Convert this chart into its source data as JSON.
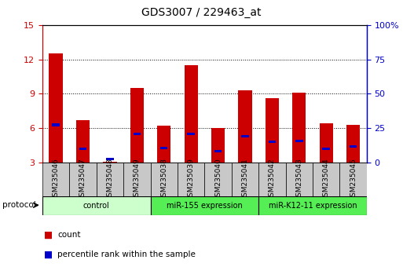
{
  "title": "GDS3007 / 229463_at",
  "samples": [
    "GSM235046",
    "GSM235047",
    "GSM235048",
    "GSM235049",
    "GSM235038",
    "GSM235039",
    "GSM235040",
    "GSM235041",
    "GSM235042",
    "GSM235043",
    "GSM235044",
    "GSM235045"
  ],
  "count_values": [
    12.5,
    6.7,
    3.1,
    9.5,
    6.2,
    11.5,
    6.0,
    9.3,
    8.6,
    9.1,
    6.4,
    6.3
  ],
  "percentile_values": [
    6.3,
    4.2,
    3.3,
    5.5,
    4.3,
    5.5,
    4.0,
    5.3,
    4.8,
    4.9,
    4.2,
    4.4
  ],
  "ylim_left": [
    3,
    15
  ],
  "ylim_right": [
    0,
    100
  ],
  "yticks_left": [
    3,
    6,
    9,
    12,
    15
  ],
  "yticks_right": [
    0,
    25,
    50,
    75,
    100
  ],
  "ytick_labels_right": [
    "0",
    "25",
    "50",
    "75",
    "100%"
  ],
  "bar_color_red": "#cc0000",
  "bar_color_blue": "#0000cc",
  "bar_width": 0.5,
  "groups": [
    {
      "label": "control",
      "start": 0,
      "end": 4,
      "color": "#ccffcc"
    },
    {
      "label": "miR-155 expression",
      "start": 4,
      "end": 8,
      "color": "#55ee55"
    },
    {
      "label": "miR-K12-11 expression",
      "start": 8,
      "end": 12,
      "color": "#55ee55"
    }
  ],
  "protocol_label": "protocol",
  "tick_label_color_left": "#cc0000",
  "tick_label_color_right": "#0000cc"
}
